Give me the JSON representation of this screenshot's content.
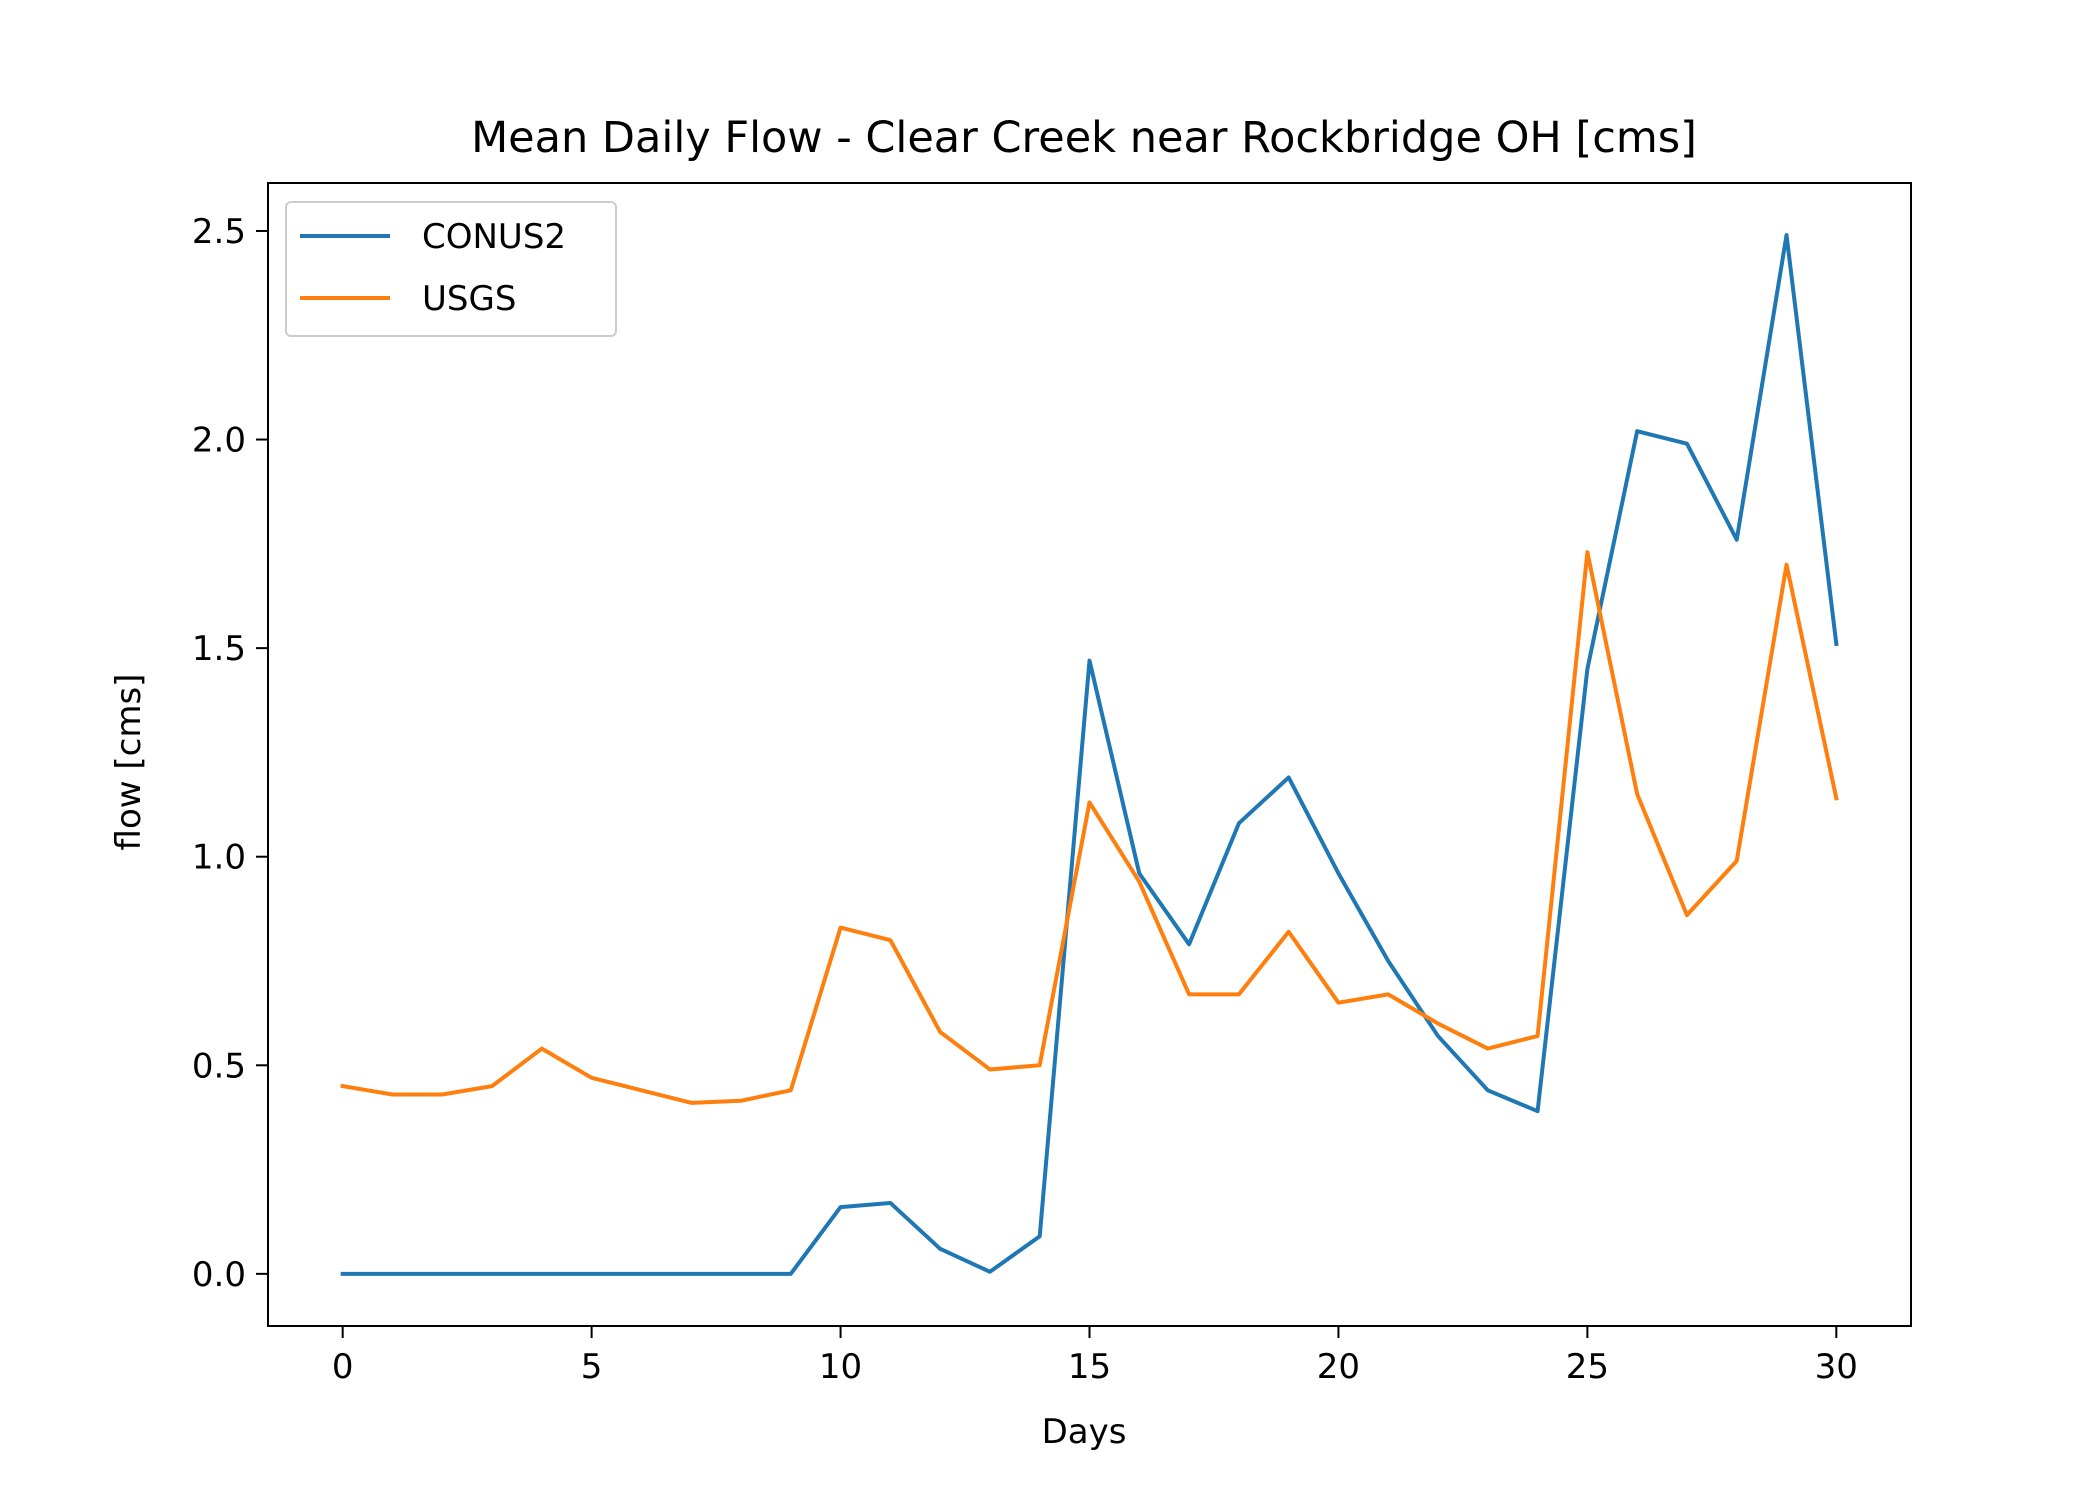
{
  "chart_data": {
    "type": "line",
    "title": "Mean Daily Flow - Clear Creek near Rockbridge OH [cms]",
    "xlabel": "Days",
    "ylabel": "flow [cms]",
    "xlim": [
      -1.5,
      31.5
    ],
    "ylim": [
      -0.125,
      2.615
    ],
    "xticks": [
      0,
      5,
      10,
      15,
      20,
      25,
      30
    ],
    "xtick_labels": [
      "0",
      "5",
      "10",
      "15",
      "20",
      "25",
      "30"
    ],
    "yticks": [
      0.0,
      0.5,
      1.0,
      1.5,
      2.0,
      2.5
    ],
    "ytick_labels": [
      "0.0",
      "0.5",
      "1.0",
      "1.5",
      "2.0",
      "2.5"
    ],
    "grid": false,
    "legend_position": "upper-left",
    "x": [
      0,
      1,
      2,
      3,
      4,
      5,
      6,
      7,
      8,
      9,
      10,
      11,
      12,
      13,
      14,
      15,
      16,
      17,
      18,
      19,
      20,
      21,
      22,
      23,
      24,
      25,
      26,
      27,
      28,
      29,
      30
    ],
    "series": [
      {
        "name": "CONUS2",
        "color": "#1f77b4",
        "values": [
          0.0,
          0.0,
          0.0,
          0.0,
          0.0,
          0.0,
          0.0,
          0.0,
          0.0,
          0.0,
          0.16,
          0.17,
          0.06,
          0.005,
          0.09,
          1.47,
          0.96,
          0.79,
          1.08,
          1.19,
          0.96,
          0.75,
          0.57,
          0.44,
          0.39,
          1.45,
          2.02,
          1.99,
          1.76,
          2.49,
          1.51
        ]
      },
      {
        "name": "USGS",
        "color": "#ff7f0e",
        "values": [
          0.45,
          0.43,
          0.43,
          0.45,
          0.54,
          0.47,
          0.44,
          0.41,
          0.415,
          0.44,
          0.83,
          0.8,
          0.58,
          0.49,
          0.5,
          1.13,
          0.94,
          0.67,
          0.67,
          0.82,
          0.65,
          0.67,
          0.6,
          0.54,
          0.57,
          1.73,
          1.15,
          0.86,
          0.99,
          1.7,
          1.14
        ]
      }
    ]
  }
}
